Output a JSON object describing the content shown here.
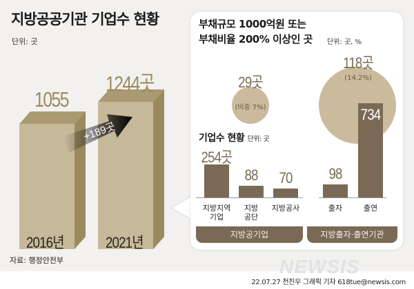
{
  "title": "지방공공기관 기업수 현황",
  "unit": "단위: 곳",
  "source": "자료: 행정안전부",
  "byline": "22.07.27 전진우 그래픽 기자 618tue@newsis.com",
  "watermark": "NEWSIS",
  "colors": {
    "bar_light": "#c6b99a",
    "bar_side": "#9c8a5f",
    "bar_dark": "#7a6a55",
    "circle": "#c9bb9c",
    "background": "#f3f1ef"
  },
  "chart_data": [
    {
      "type": "bar",
      "title": "지방공공기관 기업수 현황",
      "unit": "단위: 곳",
      "categories": [
        "2016년",
        "2021년"
      ],
      "values": [
        1055,
        1244
      ],
      "value_labels": [
        "1055",
        "1244곳"
      ],
      "change_label": "+189곳"
    },
    {
      "type": "bubble",
      "title": "부채규모 1000억원 또는 부채비율 200% 이상인 곳",
      "unit": "단위: 곳, %",
      "items": [
        {
          "value": 29,
          "label": "29곳",
          "share": 7,
          "share_label": "(비중 7%)"
        },
        {
          "value": 118,
          "label": "118곳",
          "share": 14.2,
          "share_label": "(14.2%)"
        }
      ]
    },
    {
      "type": "bar",
      "title": "기업수 현황",
      "unit": "단위: 곳",
      "groups": [
        {
          "name": "지방공기업",
          "categories": [
            "지방지역\n기업",
            "지방\n공단",
            "지방공사"
          ],
          "values": [
            254,
            88,
            70
          ],
          "value_labels": [
            "254곳",
            "88",
            "70"
          ]
        },
        {
          "name": "지방출자·출연기관",
          "categories": [
            "출자",
            "출연"
          ],
          "values": [
            98,
            734
          ],
          "value_labels": [
            "98",
            "734"
          ]
        }
      ]
    }
  ]
}
